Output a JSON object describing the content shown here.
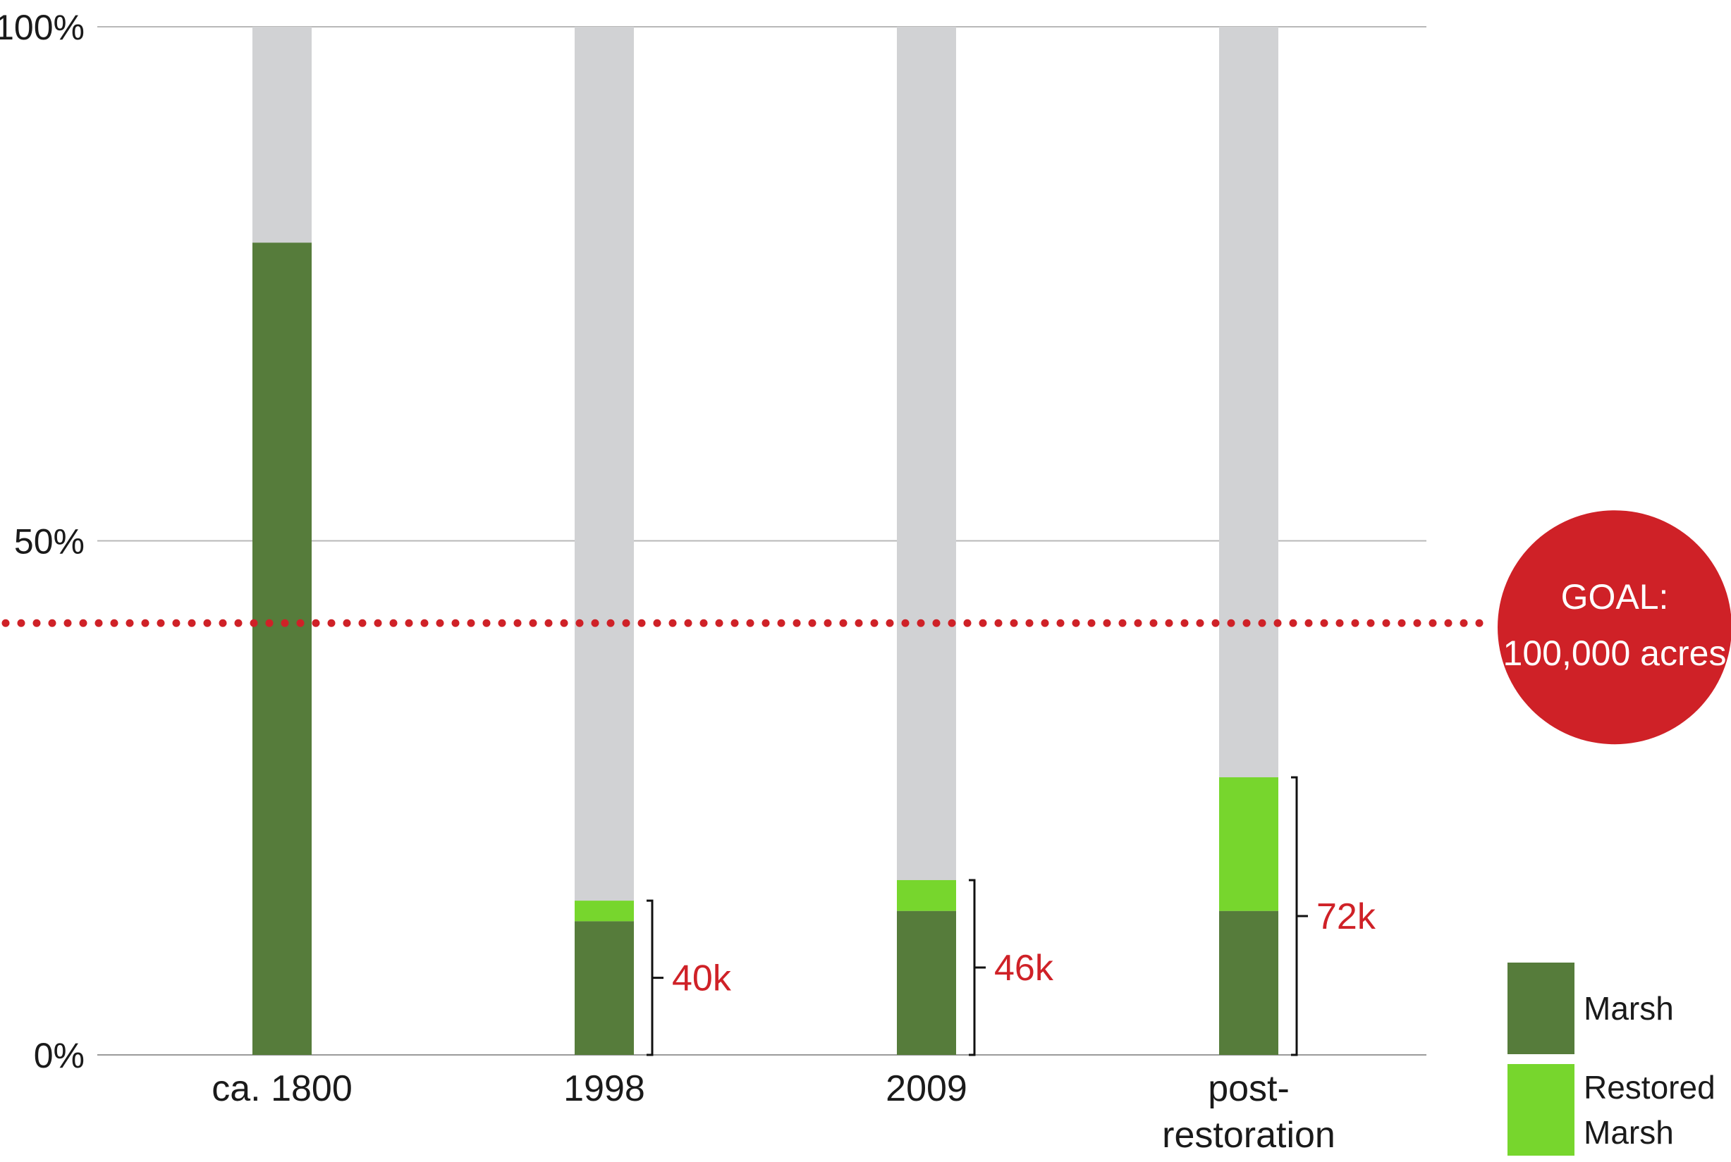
{
  "chart_data": {
    "type": "bar",
    "stacked": true,
    "categories": [
      "ca. 1800",
      "1998",
      "2009",
      "post-restoration"
    ],
    "series": [
      {
        "name": "Marsh",
        "color": "#567c3b",
        "values": [
          79,
          13,
          14,
          14
        ]
      },
      {
        "name": "Restored Marsh",
        "color": "#77d62d",
        "values": [
          0,
          2,
          3,
          13
        ]
      }
    ],
    "background_track_color": "#d1d2d4",
    "bracket_labels": [
      "",
      "40k",
      "46k",
      "72k"
    ],
    "y_tick_labels": [
      "100%",
      "50%",
      "0%"
    ],
    "y_ticks": [
      100,
      50,
      0
    ],
    "ylim": [
      0,
      100
    ],
    "grid": true,
    "goal_line": {
      "value": 42,
      "color": "#cf2127",
      "label_line1": "GOAL:",
      "label_line2": "100,000 acres"
    },
    "legend": {
      "position": "bottom-right",
      "items": [
        {
          "label_lines": [
            "Marsh"
          ],
          "color": "#567c3b"
        },
        {
          "label_lines": [
            "Restored",
            "Marsh"
          ],
          "color": "#77d62d"
        }
      ]
    }
  }
}
